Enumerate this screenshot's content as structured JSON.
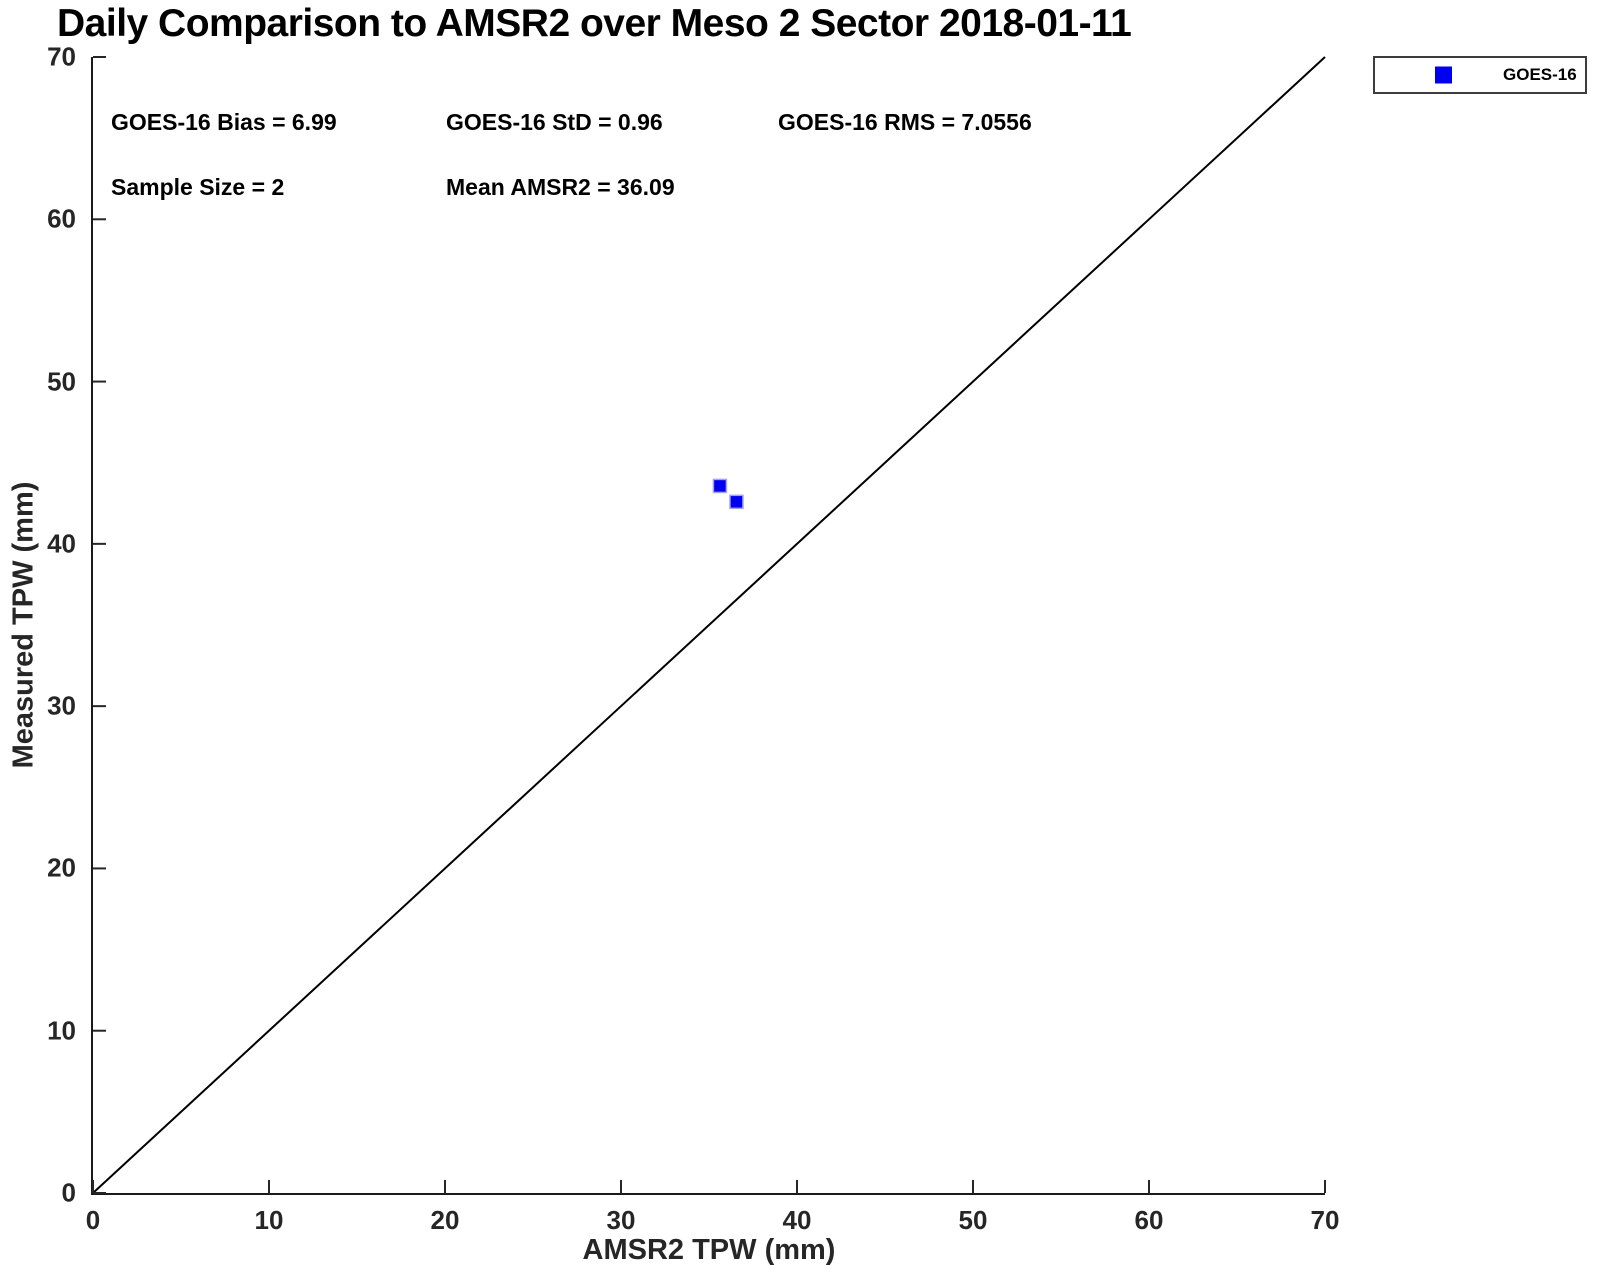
{
  "chart_data": {
    "type": "scatter",
    "title": "Daily Comparison to AMSR2 over Meso 2 Sector 2018-01-11",
    "xlabel": "AMSR2 TPW (mm)",
    "ylabel": "Measured TPW (mm)",
    "xlim": [
      0,
      70
    ],
    "ylim": [
      0,
      70
    ],
    "xticks": [
      0,
      10,
      20,
      30,
      40,
      50,
      60,
      70
    ],
    "yticks": [
      0,
      10,
      20,
      30,
      40,
      50,
      60,
      70
    ],
    "grid": false,
    "axis_color": "#262626",
    "series": [
      {
        "name": "GOES-16",
        "marker": "square",
        "color": "#0000f0",
        "marker_edge_color": "#a3a3f5",
        "points": [
          [
            35.62,
            43.57
          ],
          [
            36.56,
            42.59
          ]
        ]
      }
    ],
    "reference_line": {
      "from": [
        0,
        0
      ],
      "to": [
        70,
        70
      ],
      "color": "#000000"
    },
    "stats": {
      "bias": "GOES-16 Bias = 6.99",
      "std": "GOES-16 StD = 0.96",
      "rms": "GOES-16 RMS = 7.0556",
      "sample_size": "Sample Size = 2",
      "mean_amsr2": "Mean AMSR2 = 36.09"
    },
    "legend": {
      "label": "GOES-16",
      "marker_color": "#0000f0",
      "position": "outside-top-right"
    }
  }
}
